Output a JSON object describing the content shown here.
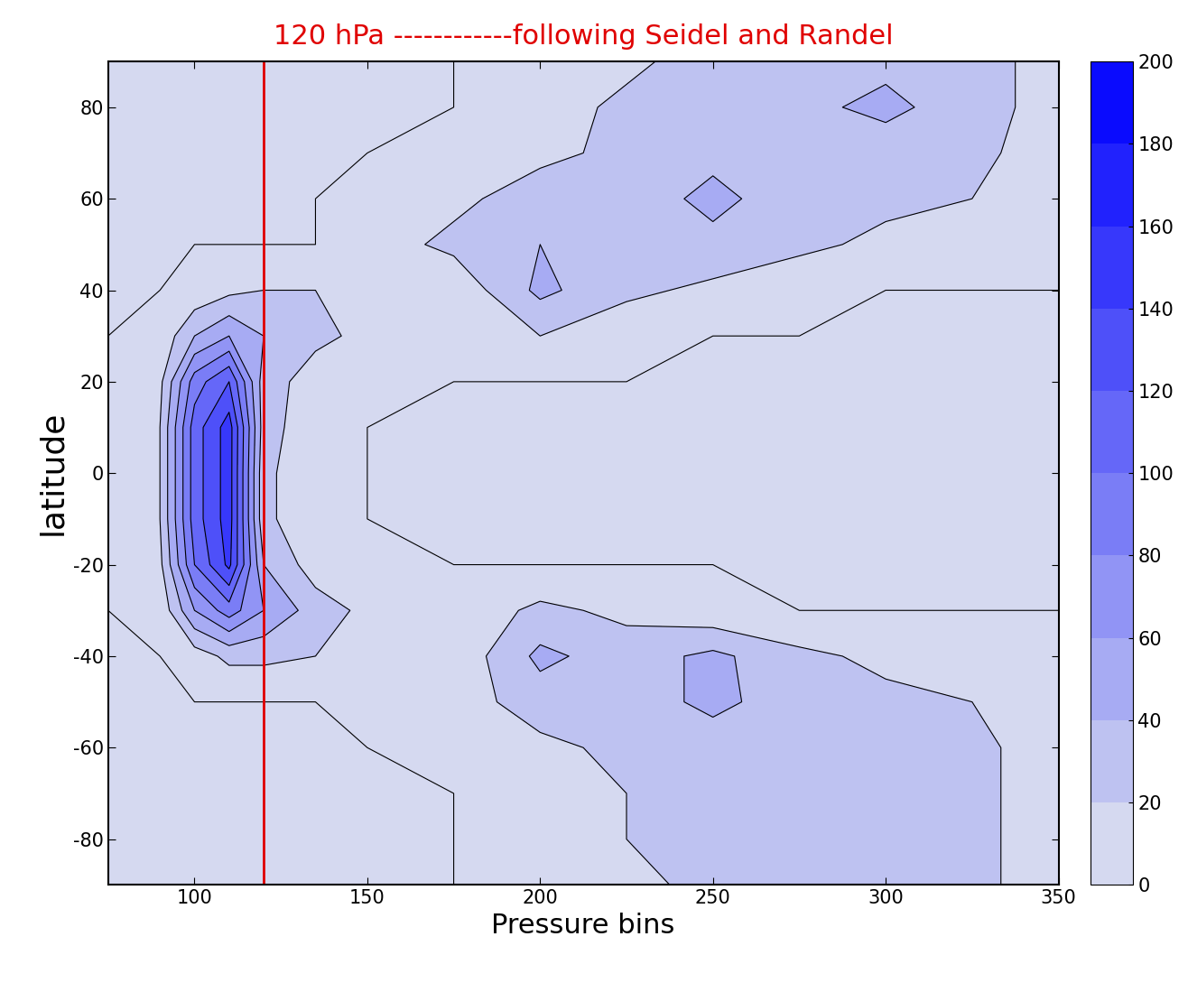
{
  "chart_data": {
    "type": "contour",
    "title": "120 hPa ------------following Seidel and Randel",
    "x_label": "Pressure bins",
    "y_label": "latitude",
    "x": [
      75,
      90,
      100,
      110,
      120,
      135,
      150,
      175,
      200,
      225,
      250,
      275,
      300,
      325,
      350
    ],
    "y": [
      -90,
      -80,
      -70,
      -60,
      -50,
      -40,
      -30,
      -20,
      -10,
      0,
      10,
      20,
      30,
      40,
      50,
      60,
      70,
      80,
      90
    ],
    "cells": [
      [
        0,
        0,
        0,
        0,
        0,
        0,
        0,
        0,
        5,
        15,
        25,
        25,
        25,
        25,
        10
      ],
      [
        0,
        0,
        0,
        0,
        0,
        0,
        0,
        0,
        10,
        20,
        25,
        25,
        30,
        25,
        10
      ],
      [
        0,
        0,
        0,
        0,
        0,
        0,
        0,
        0,
        20,
        20,
        25,
        25,
        30,
        25,
        10
      ],
      [
        0,
        0,
        0,
        0,
        0,
        0,
        0,
        5,
        15,
        25,
        30,
        30,
        30,
        25,
        10
      ],
      [
        0,
        0,
        0,
        0,
        0,
        0,
        5,
        10,
        30,
        30,
        45,
        30,
        25,
        20,
        10
      ],
      [
        0,
        0,
        10,
        25,
        25,
        20,
        15,
        5,
        45,
        30,
        45,
        25,
        15,
        10,
        5
      ],
      [
        0,
        5,
        60,
        90,
        60,
        30,
        15,
        5,
        25,
        15,
        5,
        0,
        0,
        0,
        0
      ],
      [
        0,
        15,
        100,
        145,
        40,
        10,
        5,
        0,
        0,
        0,
        0,
        0,
        0,
        0,
        0
      ],
      [
        0,
        20,
        110,
        150,
        25,
        5,
        0,
        0,
        0,
        0,
        0,
        0,
        0,
        0,
        0
      ],
      [
        0,
        20,
        110,
        150,
        25,
        5,
        0,
        0,
        0,
        0,
        0,
        0,
        0,
        0,
        0
      ],
      [
        0,
        20,
        110,
        150,
        30,
        5,
        0,
        0,
        0,
        0,
        0,
        0,
        0,
        0,
        0
      ],
      [
        0,
        15,
        90,
        120,
        30,
        10,
        5,
        0,
        0,
        0,
        0,
        0,
        0,
        0,
        0
      ],
      [
        0,
        5,
        40,
        60,
        40,
        25,
        15,
        5,
        20,
        5,
        0,
        0,
        0,
        0,
        0
      ],
      [
        0,
        0,
        5,
        15,
        20,
        20,
        20,
        5,
        45,
        25,
        15,
        5,
        0,
        0,
        0
      ],
      [
        0,
        0,
        0,
        0,
        0,
        0,
        10,
        25,
        40,
        30,
        35,
        25,
        15,
        10,
        5
      ],
      [
        0,
        0,
        0,
        0,
        0,
        0,
        5,
        15,
        30,
        30,
        45,
        30,
        25,
        20,
        10
      ],
      [
        0,
        0,
        0,
        0,
        0,
        0,
        0,
        5,
        15,
        25,
        35,
        30,
        30,
        25,
        10
      ],
      [
        0,
        0,
        0,
        0,
        0,
        0,
        0,
        0,
        10,
        25,
        30,
        35,
        45,
        30,
        10
      ],
      [
        0,
        0,
        0,
        0,
        0,
        0,
        0,
        0,
        5,
        15,
        30,
        30,
        35,
        30,
        10
      ]
    ],
    "levels": [
      0,
      20,
      40,
      60,
      80,
      100,
      120,
      140,
      160,
      180,
      200
    ],
    "colorbar_range": [
      0,
      200
    ],
    "colorbar_ticks": [
      0,
      20,
      40,
      60,
      80,
      100,
      120,
      140,
      160,
      180,
      200
    ],
    "colors": [
      "#dfe4ef",
      "#0000ff"
    ],
    "vline": {
      "x": 120,
      "color": "#e00000"
    },
    "xlim": [
      75,
      350
    ],
    "xticks": [
      100,
      150,
      200,
      250,
      300,
      350
    ],
    "ylim": [
      -90,
      90
    ],
    "yticks": [
      -80,
      -60,
      -40,
      -20,
      0,
      20,
      40,
      60,
      80
    ]
  }
}
